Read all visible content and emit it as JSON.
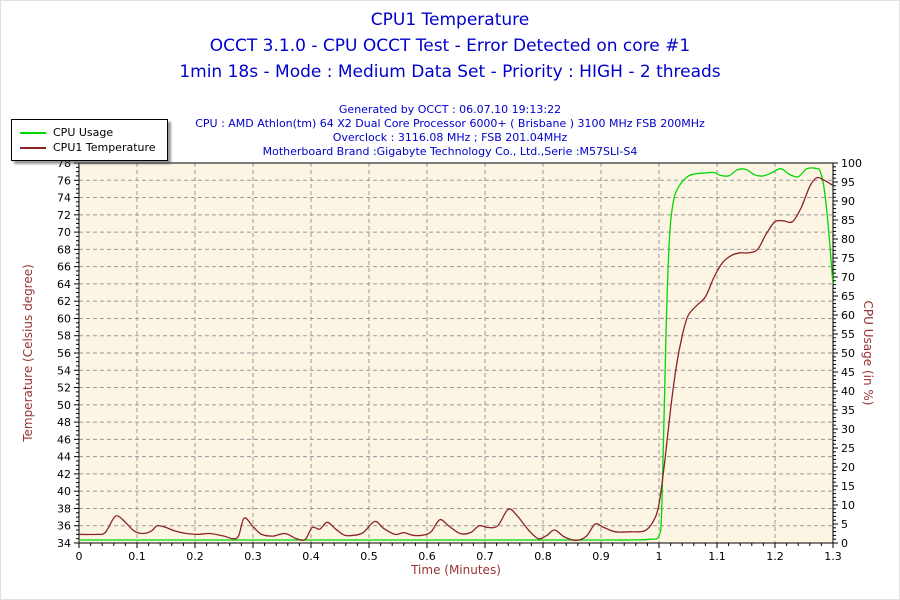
{
  "colors": {
    "title_text": "#0000cc",
    "info_text": "#0000cc",
    "axis_title": "#993333",
    "tick_label": "#000000",
    "plot_bg": "#fdf5e4",
    "grid": "#999999",
    "axis": "#000000",
    "cpu_usage_line": "#00d800",
    "temperature_line": "#8b2424"
  },
  "header": {
    "title": "CPU1 Temperature",
    "subtitle1": "OCCT 3.1.0 - CPU OCCT Test - Error Detected on core #1",
    "subtitle2": "1min 18s - Mode : Medium Data Set - Priority : HIGH - 2 threads"
  },
  "info": {
    "generated": "Generated by OCCT : 06.07.10 19:13:22",
    "cpu": "CPU : AMD Athlon(tm) 64 X2 Dual Core Processor 6000+ ( Brisbane ) 3100 MHz FSB 200MHz",
    "overclock": "Overclock : 3116.08 MHz ; FSB 201.04MHz",
    "motherboard": "Motherboard Brand :Gigabyte Technology Co., Ltd.,Serie :M57SLI-S4"
  },
  "legend": {
    "items": [
      {
        "label": "CPU Usage",
        "color": "#00d800"
      },
      {
        "label": "CPU1 Temperature",
        "color": "#8b2424"
      }
    ]
  },
  "chart_data": {
    "type": "line",
    "title": "CPU1 Temperature",
    "xlabel": "Time (Minutes)",
    "ylabel_left": "Temperature (Celsius degree)",
    "ylabel_right": "CPU Usage (in %)",
    "xlim": [
      0,
      1.3
    ],
    "ylim_left": [
      34,
      78
    ],
    "ylim_right": [
      0,
      100
    ],
    "x_tick_labels": [
      "0",
      "0.1",
      "0.2",
      "0.3",
      "0.4",
      "0.5",
      "0.6",
      "0.7",
      "0.8",
      "0.9",
      "1",
      "1.1",
      "1.2",
      "1.3"
    ],
    "y_left_tick_step": 2,
    "y_right_tick_step": 5,
    "grid": true,
    "legend_position": "top-left",
    "series": [
      {
        "name": "CPU Usage",
        "axis": "right",
        "color": "#00d800",
        "x": [
          0,
          0.1,
          0.2,
          0.3,
          0.4,
          0.5,
          0.6,
          0.7,
          0.8,
          0.9,
          0.95,
          0.985,
          1.0,
          1.005,
          1.012,
          1.018,
          1.025,
          1.035,
          1.05,
          1.065,
          1.08,
          1.095,
          1.105,
          1.12,
          1.135,
          1.15,
          1.165,
          1.18,
          1.195,
          1.21,
          1.225,
          1.24,
          1.255,
          1.27,
          1.278,
          1.285,
          1.292,
          1.3
        ],
        "y": [
          0.8,
          0.8,
          0.8,
          0.8,
          0.8,
          0.8,
          0.8,
          0.8,
          0.8,
          0.8,
          0.8,
          1,
          2,
          10,
          55,
          80,
          90,
          94,
          96.5,
          97.2,
          97.4,
          97.5,
          96.8,
          96.6,
          98.2,
          98.3,
          96.9,
          96.6,
          97.5,
          98.5,
          97,
          96.4,
          98.5,
          98.6,
          97.8,
          93,
          83,
          68
        ]
      },
      {
        "name": "CPU1 Temperature",
        "axis": "left",
        "color": "#8b2424",
        "x": [
          0,
          0.03,
          0.045,
          0.06,
          0.068,
          0.08,
          0.095,
          0.11,
          0.125,
          0.135,
          0.15,
          0.165,
          0.185,
          0.205,
          0.225,
          0.25,
          0.265,
          0.275,
          0.285,
          0.3,
          0.315,
          0.335,
          0.355,
          0.375,
          0.39,
          0.402,
          0.415,
          0.428,
          0.443,
          0.458,
          0.475,
          0.49,
          0.51,
          0.525,
          0.545,
          0.56,
          0.575,
          0.592,
          0.607,
          0.622,
          0.637,
          0.657,
          0.675,
          0.69,
          0.705,
          0.722,
          0.74,
          0.755,
          0.775,
          0.792,
          0.807,
          0.82,
          0.837,
          0.857,
          0.875,
          0.89,
          0.905,
          0.925,
          0.95,
          0.975,
          0.99,
          1.0,
          1.01,
          1.02,
          1.03,
          1.04,
          1.05,
          1.065,
          1.08,
          1.095,
          1.11,
          1.125,
          1.14,
          1.155,
          1.17,
          1.185,
          1.2,
          1.215,
          1.23,
          1.245,
          1.26,
          1.272,
          1.285,
          1.3
        ],
        "y": [
          35,
          35,
          35.2,
          36.9,
          37.1,
          36.4,
          35.4,
          35.1,
          35.4,
          36,
          35.8,
          35.4,
          35.1,
          35,
          35.1,
          34.8,
          34.5,
          34.8,
          36.9,
          35.9,
          35,
          34.8,
          35.1,
          34.5,
          34.4,
          35.8,
          35.6,
          36.4,
          35.6,
          34.9,
          34.9,
          35.2,
          36.5,
          35.7,
          35,
          35.2,
          34.9,
          34.9,
          35.3,
          36.7,
          36,
          35.1,
          35.2,
          36,
          35.8,
          36,
          37.9,
          37.2,
          35.5,
          34.5,
          34.9,
          35.5,
          34.7,
          34.3,
          34.8,
          36.2,
          35.8,
          35.3,
          35.3,
          35.4,
          36.5,
          38.5,
          43.5,
          49.5,
          54.5,
          58,
          60.3,
          61.5,
          62.5,
          64.8,
          66.5,
          67.3,
          67.6,
          67.6,
          68,
          69.8,
          71.2,
          71.3,
          71.2,
          72.8,
          75.3,
          76.3,
          76,
          75.4
        ]
      }
    ]
  }
}
